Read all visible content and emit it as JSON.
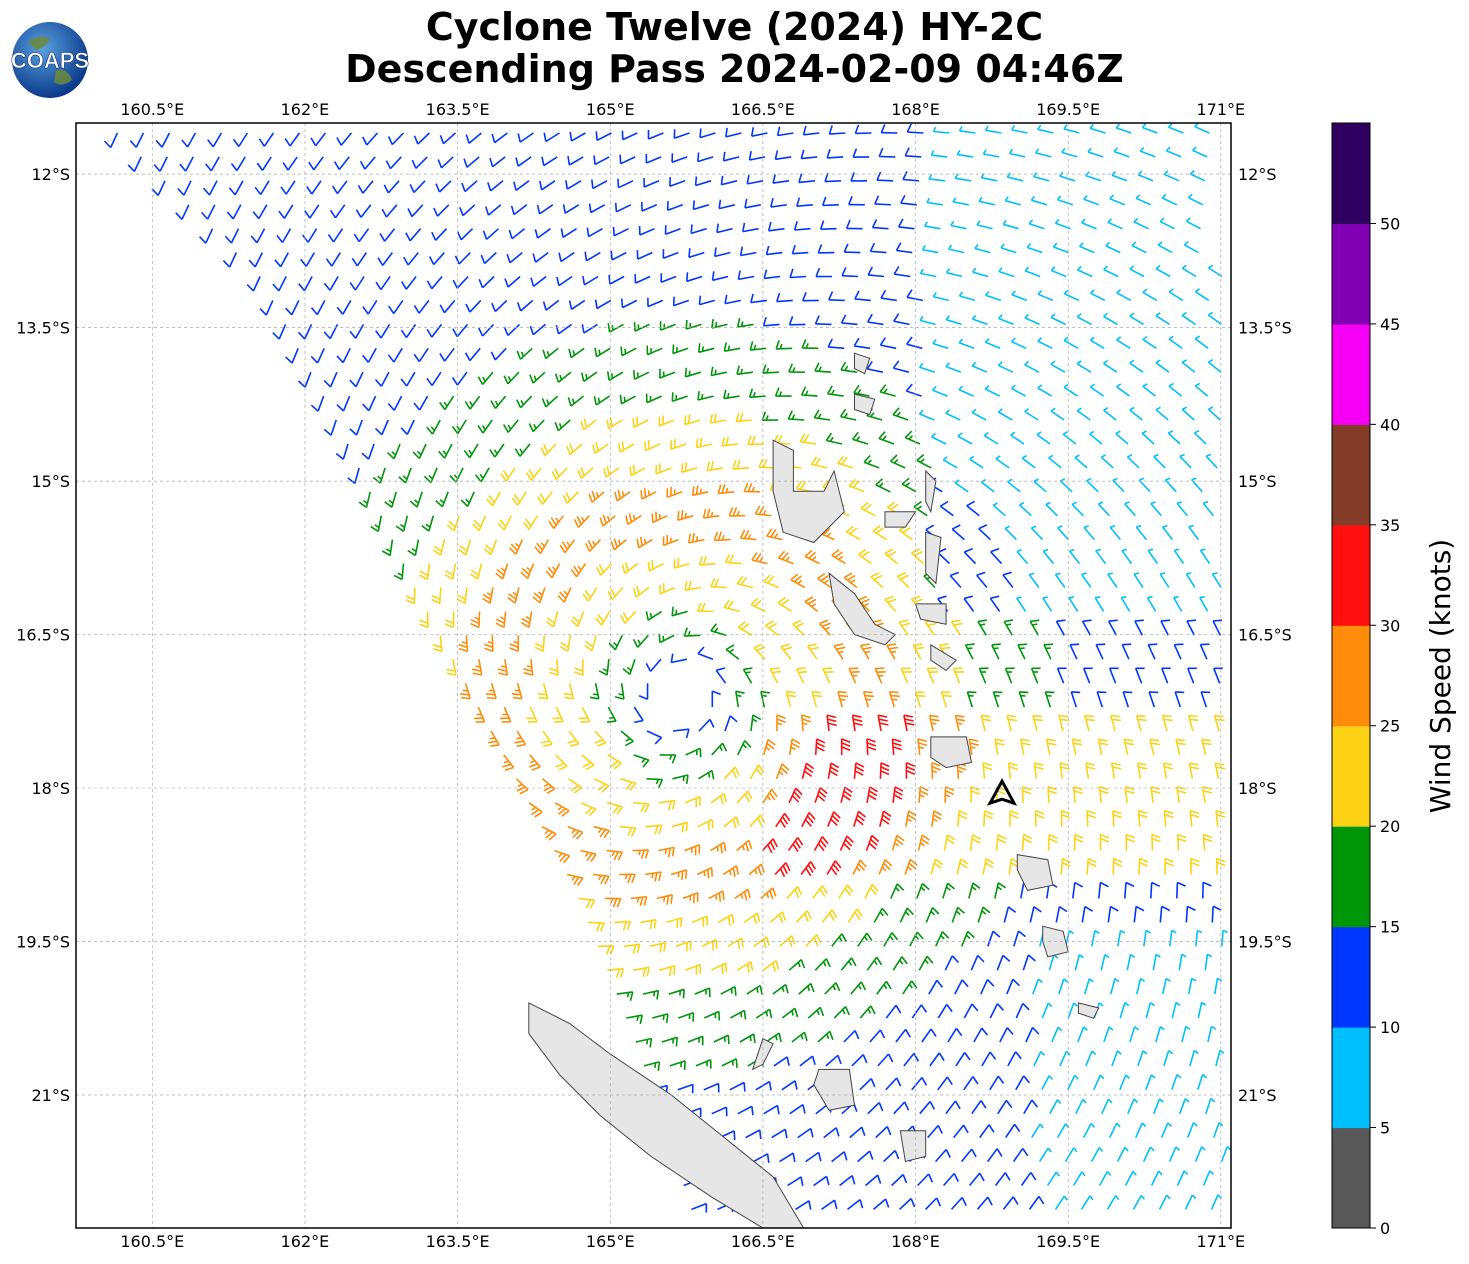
{
  "title": {
    "line1": "Cyclone Twelve (2024) HY-2C",
    "line2": "Descending Pass 2024-02-09 04:46Z"
  },
  "logo": {
    "text": "COAPS",
    "icon": "globe-icon"
  },
  "map": {
    "lon_range": [
      159.75,
      171.1
    ],
    "lat_range": [
      -11.5,
      -22.3
    ],
    "lon_ticks": [
      {
        "value": 160.5,
        "label": "160.5°E"
      },
      {
        "value": 162,
        "label": "162°E"
      },
      {
        "value": 163.5,
        "label": "163.5°E"
      },
      {
        "value": 165,
        "label": "165°E"
      },
      {
        "value": 166.5,
        "label": "166.5°E"
      },
      {
        "value": 168,
        "label": "168°E"
      },
      {
        "value": 169.5,
        "label": "169.5°E"
      },
      {
        "value": 171,
        "label": "171°E"
      }
    ],
    "lat_ticks": [
      {
        "value": -12,
        "label": "12°S"
      },
      {
        "value": -13.5,
        "label": "13.5°S"
      },
      {
        "value": -15,
        "label": "15°S"
      },
      {
        "value": -16.5,
        "label": "16.5°S"
      },
      {
        "value": -18,
        "label": "18°S"
      },
      {
        "value": -19.5,
        "label": "19.5°S"
      },
      {
        "value": -21,
        "label": "21°S"
      }
    ],
    "grid": true,
    "cyclone_center": {
      "lon": 165.7,
      "lat": -17.1
    },
    "track_marker": {
      "lon": 168.85,
      "lat": -18.05,
      "icon": "storm-position-marker"
    },
    "swath_west_edge": [
      [
        160.0,
        -11.5
      ],
      [
        161.5,
        -13.0
      ],
      [
        162.3,
        -14.5
      ],
      [
        163.0,
        -16.0
      ],
      [
        163.8,
        -17.5
      ],
      [
        164.6,
        -19.0
      ],
      [
        165.2,
        -20.5
      ],
      [
        165.8,
        -22.3
      ]
    ],
    "islands": [
      {
        "name": "new-caledonia",
        "points": [
          [
            164.2,
            -20.1
          ],
          [
            164.6,
            -20.3
          ],
          [
            165.0,
            -20.6
          ],
          [
            165.6,
            -21.0
          ],
          [
            166.1,
            -21.4
          ],
          [
            166.6,
            -21.8
          ],
          [
            166.9,
            -22.3
          ],
          [
            166.5,
            -22.3
          ],
          [
            166.0,
            -22.0
          ],
          [
            165.4,
            -21.6
          ],
          [
            164.9,
            -21.2
          ],
          [
            164.5,
            -20.8
          ],
          [
            164.2,
            -20.4
          ]
        ]
      },
      {
        "name": "espiritu-santo",
        "points": [
          [
            166.6,
            -14.6
          ],
          [
            166.8,
            -14.7
          ],
          [
            166.8,
            -15.1
          ],
          [
            167.1,
            -15.1
          ],
          [
            167.2,
            -14.9
          ],
          [
            167.3,
            -15.3
          ],
          [
            167.0,
            -15.6
          ],
          [
            166.7,
            -15.5
          ],
          [
            166.6,
            -15.1
          ]
        ]
      },
      {
        "name": "malakula",
        "points": [
          [
            167.15,
            -15.9
          ],
          [
            167.4,
            -16.1
          ],
          [
            167.6,
            -16.4
          ],
          [
            167.8,
            -16.5
          ],
          [
            167.7,
            -16.6
          ],
          [
            167.4,
            -16.5
          ],
          [
            167.2,
            -16.2
          ]
        ]
      },
      {
        "name": "efate",
        "points": [
          [
            168.15,
            -17.5
          ],
          [
            168.5,
            -17.5
          ],
          [
            168.55,
            -17.75
          ],
          [
            168.3,
            -17.8
          ],
          [
            168.15,
            -17.7
          ]
        ]
      },
      {
        "name": "erromango",
        "points": [
          [
            169.0,
            -18.65
          ],
          [
            169.3,
            -18.7
          ],
          [
            169.35,
            -18.95
          ],
          [
            169.1,
            -19.0
          ],
          [
            169.0,
            -18.8
          ]
        ]
      },
      {
        "name": "tanna",
        "points": [
          [
            169.25,
            -19.35
          ],
          [
            169.45,
            -19.4
          ],
          [
            169.5,
            -19.6
          ],
          [
            169.3,
            -19.65
          ],
          [
            169.25,
            -19.5
          ]
        ]
      },
      {
        "name": "pentecost",
        "points": [
          [
            168.1,
            -15.5
          ],
          [
            168.25,
            -15.55
          ],
          [
            168.2,
            -16.0
          ],
          [
            168.1,
            -15.9
          ]
        ]
      },
      {
        "name": "maewo",
        "points": [
          [
            168.1,
            -14.9
          ],
          [
            168.2,
            -15.0
          ],
          [
            168.15,
            -15.3
          ],
          [
            168.1,
            -15.2
          ]
        ]
      },
      {
        "name": "ambae",
        "points": [
          [
            167.7,
            -15.3
          ],
          [
            168.0,
            -15.3
          ],
          [
            167.9,
            -15.45
          ],
          [
            167.7,
            -15.45
          ]
        ]
      },
      {
        "name": "ambrym",
        "points": [
          [
            168.0,
            -16.2
          ],
          [
            168.3,
            -16.2
          ],
          [
            168.3,
            -16.4
          ],
          [
            168.05,
            -16.35
          ]
        ]
      },
      {
        "name": "epi",
        "points": [
          [
            168.15,
            -16.6
          ],
          [
            168.4,
            -16.75
          ],
          [
            168.3,
            -16.85
          ],
          [
            168.15,
            -16.75
          ]
        ]
      },
      {
        "name": "lifou",
        "points": [
          [
            167.05,
            -20.75
          ],
          [
            167.35,
            -20.75
          ],
          [
            167.4,
            -21.1
          ],
          [
            167.15,
            -21.15
          ],
          [
            167.0,
            -20.9
          ]
        ]
      },
      {
        "name": "mare",
        "points": [
          [
            167.85,
            -21.35
          ],
          [
            168.1,
            -21.35
          ],
          [
            168.1,
            -21.6
          ],
          [
            167.9,
            -21.65
          ]
        ]
      },
      {
        "name": "ouvea",
        "points": [
          [
            166.5,
            -20.45
          ],
          [
            166.6,
            -20.5
          ],
          [
            166.5,
            -20.7
          ],
          [
            166.4,
            -20.75
          ]
        ]
      },
      {
        "name": "gaua",
        "points": [
          [
            167.4,
            -14.15
          ],
          [
            167.6,
            -14.2
          ],
          [
            167.55,
            -14.35
          ],
          [
            167.4,
            -14.3
          ]
        ]
      },
      {
        "name": "vanua-lava",
        "points": [
          [
            167.4,
            -13.75
          ],
          [
            167.55,
            -13.8
          ],
          [
            167.5,
            -13.95
          ],
          [
            167.4,
            -13.9
          ]
        ]
      },
      {
        "name": "anatom",
        "points": [
          [
            169.6,
            -20.1
          ],
          [
            169.8,
            -20.15
          ],
          [
            169.75,
            -20.25
          ],
          [
            169.6,
            -20.2
          ]
        ]
      }
    ]
  },
  "colorbar": {
    "title": "Wind Speed (knots)",
    "bins": [
      {
        "from": 0,
        "to": 5,
        "color": "#585858"
      },
      {
        "from": 5,
        "to": 10,
        "color": "#00bfff"
      },
      {
        "from": 10,
        "to": 15,
        "color": "#0037ff"
      },
      {
        "from": 15,
        "to": 20,
        "color": "#00960a"
      },
      {
        "from": 20,
        "to": 25,
        "color": "#fdd214"
      },
      {
        "from": 25,
        "to": 30,
        "color": "#fe8c0a"
      },
      {
        "from": 30,
        "to": 35,
        "color": "#ff0f0f"
      },
      {
        "from": 35,
        "to": 40,
        "color": "#823c28"
      },
      {
        "from": 40,
        "to": 45,
        "color": "#f500f5"
      },
      {
        "from": 45,
        "to": 50,
        "color": "#8200b4"
      },
      {
        "from": 50,
        "to": 55,
        "color": "#300060"
      }
    ],
    "tick_labels": [
      "0",
      "5",
      "10",
      "15",
      "20",
      "25",
      "30",
      "35",
      "40",
      "45",
      "50"
    ]
  }
}
